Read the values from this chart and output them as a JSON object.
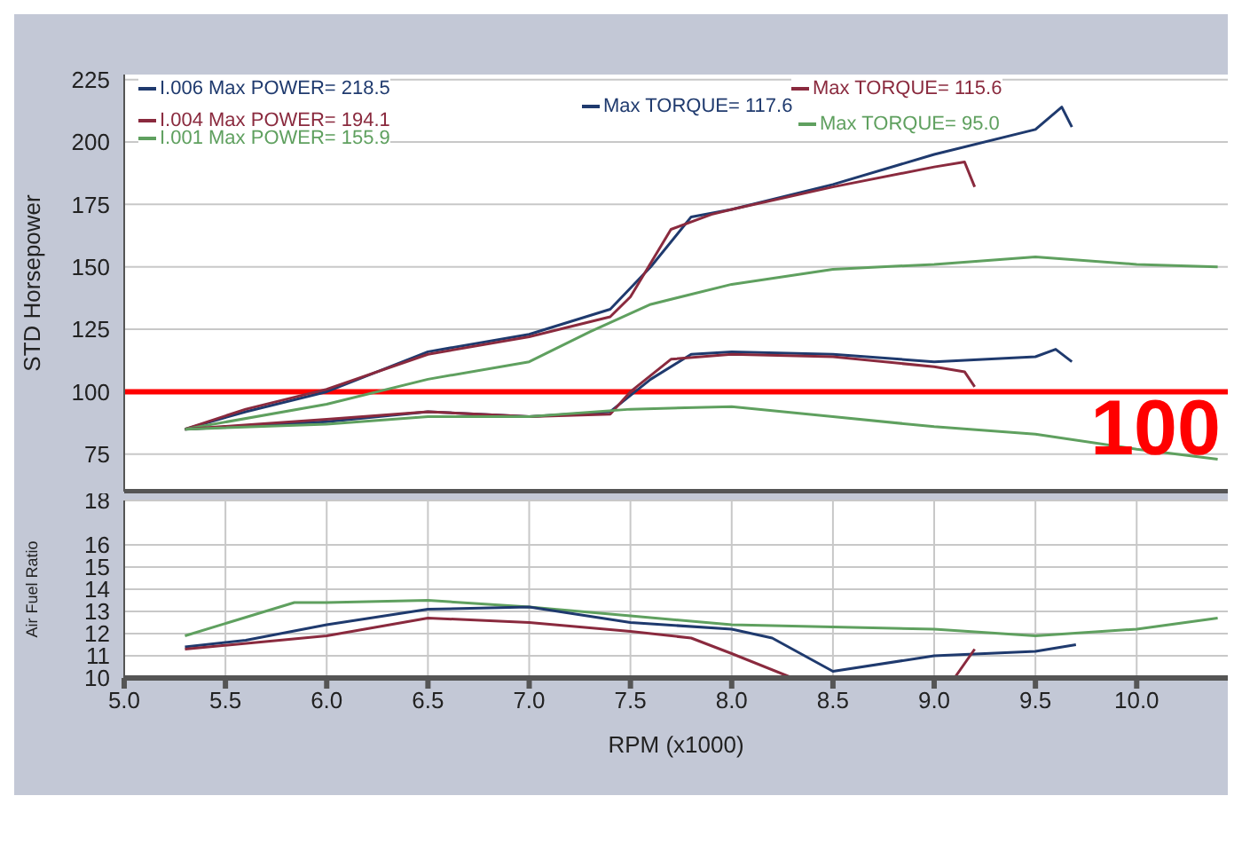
{
  "chart_data": [
    {
      "type": "line",
      "ylabel": "STD Horsepower",
      "xlim": [
        5.0,
        10.45
      ],
      "ylim": [
        60,
        227
      ],
      "xticks": [
        5,
        5.5,
        6,
        6.5,
        7,
        7.5,
        8,
        8.5,
        9,
        9.5,
        10
      ],
      "yticks": [
        75,
        100,
        125,
        150,
        175,
        200,
        225
      ],
      "tick_labels": "y",
      "grid": true,
      "legend": "top",
      "marker": "none",
      "line_style": "solid",
      "ref_lines": [
        {
          "axis": "y",
          "value": 100,
          "label": "100",
          "color": "#ff0000"
        }
      ],
      "series": [
        {
          "name": "I.006  Max POWER= 218.5",
          "color": "#1f3a6e",
          "x": [
            5.3,
            5.6,
            6.0,
            6.5,
            7.0,
            7.4,
            7.6,
            7.8,
            8.0,
            8.5,
            9.0,
            9.5,
            9.63,
            9.68
          ],
          "values": [
            85,
            92,
            100,
            116,
            123,
            133,
            150,
            170,
            173,
            183,
            195,
            205,
            214,
            206
          ]
        },
        {
          "name": "I.004  Max POWER= 194.1",
          "color": "#8a2a3e",
          "x": [
            5.3,
            5.6,
            6.0,
            6.5,
            7.0,
            7.4,
            7.5,
            7.7,
            7.9,
            8.0,
            8.5,
            9.0,
            9.15,
            9.2
          ],
          "values": [
            85,
            93,
            101,
            115,
            122,
            130,
            138,
            165,
            171,
            173,
            182,
            190,
            192,
            182
          ]
        },
        {
          "name": "I.001  Max POWER= 155.9",
          "color": "#5fa05f",
          "x": [
            5.3,
            6.0,
            6.5,
            7.0,
            7.3,
            7.6,
            8.0,
            8.5,
            9.0,
            9.5,
            10.0,
            10.4
          ],
          "values": [
            85,
            95,
            105,
            112,
            124,
            135,
            143,
            149,
            151,
            154,
            151,
            150
          ]
        },
        {
          "name": "Max TORQUE= 117.6",
          "color": "#1f3a6e",
          "x": [
            5.3,
            6.0,
            6.5,
            7.0,
            7.4,
            7.6,
            7.8,
            8.0,
            8.5,
            9.0,
            9.5,
            9.6,
            9.68
          ],
          "values": [
            85,
            88,
            92,
            90,
            92,
            105,
            115,
            116,
            115,
            112,
            114,
            117,
            112
          ]
        },
        {
          "name": "Max TORQUE= 115.6",
          "color": "#8a2a3e",
          "x": [
            5.3,
            6.0,
            6.5,
            7.0,
            7.4,
            7.5,
            7.7,
            8.0,
            8.5,
            9.0,
            9.15,
            9.2
          ],
          "values": [
            85,
            89,
            92,
            90,
            91,
            100,
            113,
            115,
            114,
            110,
            108,
            102
          ]
        },
        {
          "name": "Max TORQUE= 95.0",
          "color": "#5fa05f",
          "x": [
            5.3,
            6.0,
            6.5,
            7.0,
            7.5,
            8.0,
            8.5,
            9.0,
            9.5,
            10.0,
            10.4
          ],
          "values": [
            85,
            87,
            90,
            90,
            93,
            94,
            90,
            86,
            83,
            77,
            73
          ]
        }
      ]
    },
    {
      "type": "line",
      "ylabel": "Air Fuel Ratio",
      "xlabel": "RPM (x1000)",
      "xlim": [
        5.0,
        10.45
      ],
      "ylim": [
        10,
        18
      ],
      "xticks": [
        {
          "value": 5,
          "label": "5.0"
        },
        5.5,
        {
          "value": 6,
          "label": "6.0"
        },
        6.5,
        {
          "value": 7,
          "label": "7.0"
        },
        7.5,
        {
          "value": 8,
          "label": "8.0"
        },
        8.5,
        {
          "value": 9,
          "label": "9.0"
        },
        9.5,
        {
          "value": 10,
          "label": "10.0"
        }
      ],
      "yticks": [
        10,
        11,
        12,
        13,
        14,
        15,
        16,
        18
      ],
      "grid": true,
      "marker": "none",
      "line_style": "solid",
      "series": [
        {
          "color": "#5fa05f",
          "x": [
            5.3,
            5.84,
            6.0,
            6.5,
            7.0,
            7.5,
            8.0,
            9.0,
            9.5,
            10.0,
            10.4
          ],
          "values": [
            11.9,
            13.4,
            13.4,
            13.5,
            13.2,
            12.8,
            12.4,
            12.2,
            11.9,
            12.2,
            12.7
          ]
        },
        {
          "color": "#1f3a6e",
          "x": [
            5.3,
            5.6,
            6.0,
            6.5,
            7.0,
            7.5,
            8.0,
            8.2,
            8.5,
            9.0,
            9.5,
            9.7
          ],
          "values": [
            11.4,
            11.7,
            12.4,
            13.1,
            13.2,
            12.5,
            12.2,
            11.8,
            10.3,
            11.0,
            11.2,
            11.5
          ]
        },
        {
          "color": "#8a2a3e",
          "x": [
            5.3,
            6.0,
            6.5,
            7.0,
            7.5,
            7.8,
            8.0,
            8.3,
            9.1,
            9.2
          ],
          "values": [
            11.3,
            11.9,
            12.7,
            12.5,
            12.1,
            11.8,
            11.1,
            10.0,
            10.0,
            11.3
          ]
        }
      ]
    }
  ]
}
